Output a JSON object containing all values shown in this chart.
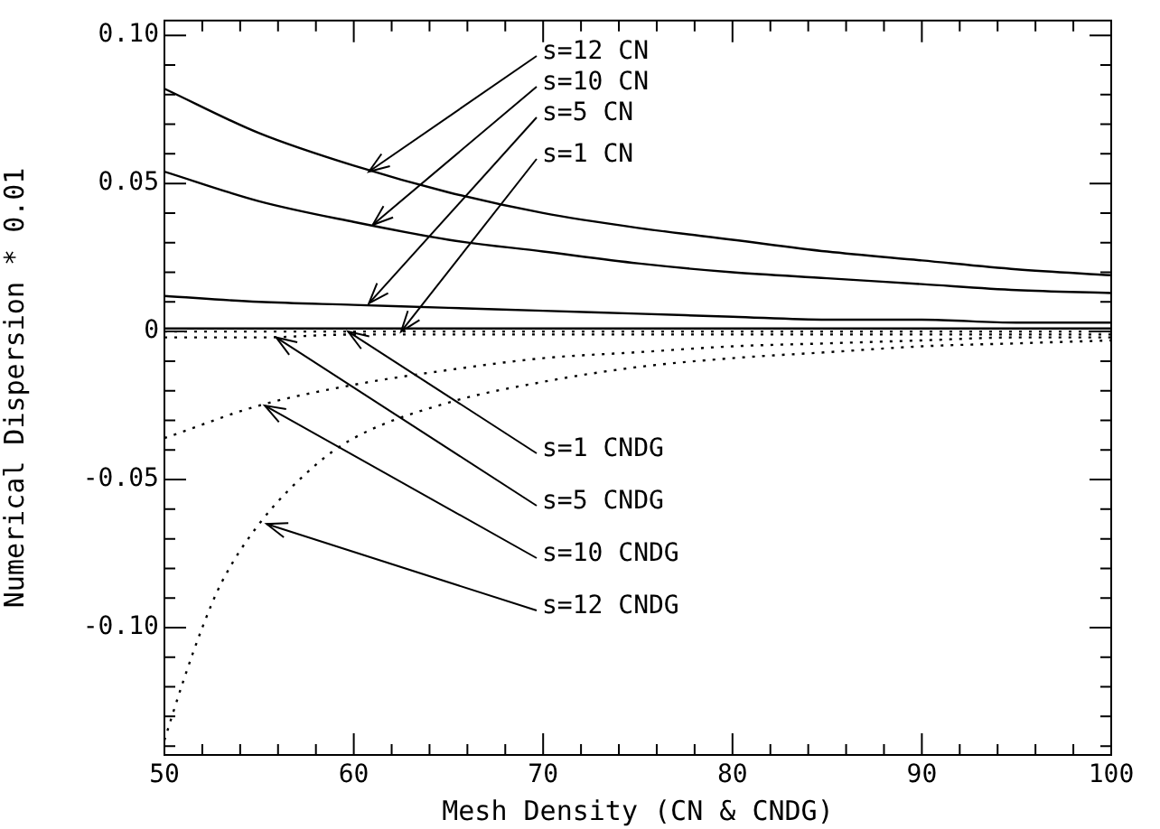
{
  "chart_data": {
    "type": "line",
    "xlabel": "Mesh Density (CN & CNDG)",
    "ylabel": "Numerical Dispersion * 0.01",
    "x": [
      50,
      55,
      60,
      65,
      70,
      75,
      80,
      85,
      90,
      95,
      100
    ],
    "series": [
      {
        "color": "#000000",
        "line_style": "solid",
        "values": [
          0.082,
          0.067,
          0.056,
          0.047,
          0.04,
          0.035,
          0.031,
          0.027,
          0.024,
          0.021,
          0.019
        ]
      },
      {
        "color": "#000000",
        "line_style": "solid",
        "values": [
          0.054,
          0.044,
          0.037,
          0.031,
          0.027,
          0.023,
          0.02,
          0.018,
          0.016,
          0.014,
          0.013
        ]
      },
      {
        "color": "#000000",
        "line_style": "solid",
        "values": [
          0.012,
          0.01,
          0.009,
          0.008,
          0.007,
          0.006,
          0.005,
          0.004,
          0.004,
          0.003,
          0.003
        ]
      },
      {
        "color": "#000000",
        "line_style": "solid",
        "values": [
          0.001,
          0.001,
          0.001,
          0.001,
          0.001,
          0.001,
          0.001,
          0.001,
          0.001,
          0.001,
          0.001
        ]
      },
      {
        "color": "#000000",
        "line_style": "dotted",
        "values": [
          0,
          0,
          0,
          0,
          0,
          0,
          0,
          0,
          0,
          0,
          0
        ]
      },
      {
        "color": "#000000",
        "line_style": "dotted",
        "values": [
          -0.002,
          -0.002,
          -0.001,
          -0.001,
          -0.001,
          -0.001,
          -0.001,
          -0.001,
          -0.001,
          -0.001,
          -0.001
        ]
      },
      {
        "color": "#000000",
        "line_style": "dotted",
        "values": [
          -0.036,
          -0.025,
          -0.018,
          -0.013,
          -0.009,
          -0.007,
          -0.005,
          -0.004,
          -0.003,
          -0.002,
          -0.002
        ]
      },
      {
        "color": "#000000",
        "line_style": "dotted",
        "x": [
          50,
          51,
          52,
          53,
          55,
          58,
          60,
          65,
          70,
          75,
          80,
          85,
          90,
          95,
          100
        ],
        "values": [
          -0.138,
          -0.118,
          -0.1,
          -0.085,
          -0.065,
          -0.045,
          -0.036,
          -0.024,
          -0.017,
          -0.012,
          -0.009,
          -0.007,
          -0.005,
          -0.004,
          -0.003
        ]
      }
    ],
    "xlim": [
      50,
      100
    ],
    "xticks": [
      50,
      {
        "value": 52,
        "label": null
      },
      {
        "value": 54,
        "label": null
      },
      {
        "value": 56,
        "label": null
      },
      {
        "value": 58,
        "label": null
      },
      60,
      {
        "value": 62,
        "label": null
      },
      {
        "value": 64,
        "label": null
      },
      {
        "value": 66,
        "label": null
      },
      {
        "value": 68,
        "label": null
      },
      70,
      {
        "value": 72,
        "label": null
      },
      {
        "value": 74,
        "label": null
      },
      {
        "value": 76,
        "label": null
      },
      {
        "value": 78,
        "label": null
      },
      80,
      {
        "value": 82,
        "label": null
      },
      {
        "value": 84,
        "label": null
      },
      {
        "value": 86,
        "label": null
      },
      {
        "value": 88,
        "label": null
      },
      90,
      {
        "value": 92,
        "label": null
      },
      {
        "value": 94,
        "label": null
      },
      {
        "value": 96,
        "label": null
      },
      {
        "value": 98,
        "label": null
      },
      100
    ],
    "ylim": [
      -0.143,
      0.105
    ],
    "yticks": [
      {
        "value": -0.14,
        "label": null
      },
      {
        "value": -0.13,
        "label": null
      },
      {
        "value": -0.12,
        "label": null
      },
      {
        "value": -0.11,
        "label": null
      },
      {
        "value": -0.1,
        "label": "-0.10"
      },
      {
        "value": -0.09,
        "label": null
      },
      {
        "value": -0.08,
        "label": null
      },
      {
        "value": -0.07,
        "label": null
      },
      {
        "value": -0.06,
        "label": null
      },
      -0.05,
      {
        "value": -0.04,
        "label": null
      },
      {
        "value": -0.03,
        "label": null
      },
      {
        "value": -0.02,
        "label": null
      },
      {
        "value": -0.01,
        "label": null
      },
      0,
      {
        "value": 0.01,
        "label": null
      },
      {
        "value": 0.02,
        "label": null
      },
      {
        "value": 0.03,
        "label": null
      },
      {
        "value": 0.04,
        "label": null
      },
      0.05,
      {
        "value": 0.06,
        "label": null
      },
      {
        "value": 0.07,
        "label": null
      },
      {
        "value": 0.08,
        "label": null
      },
      {
        "value": 0.09,
        "label": null
      },
      {
        "value": 0.1,
        "label": "0.10"
      }
    ],
    "grid": false,
    "legend": false,
    "marker": "none",
    "annotations": [
      {
        "text": "s=12 CN",
        "x": 60.8,
        "y": 0.054
      },
      {
        "text": "s=10 CN",
        "x": 61,
        "y": 0.036
      },
      {
        "text": "s=5 CN",
        "x": 60.8,
        "y": 0.0095
      },
      {
        "text": "s=1 CN",
        "x": 62.5,
        "y": 0
      },
      {
        "text": "s=1 CNDG",
        "x": 59.7,
        "y": 0
      },
      {
        "text": "s=5 CNDG",
        "x": 55.9,
        "y": -0.002
      },
      {
        "text": "s=10 CNDG",
        "x": 55.3,
        "y": -0.025
      },
      {
        "text": "s=12 CNDG",
        "x": 55.4,
        "y": -0.065
      }
    ]
  }
}
